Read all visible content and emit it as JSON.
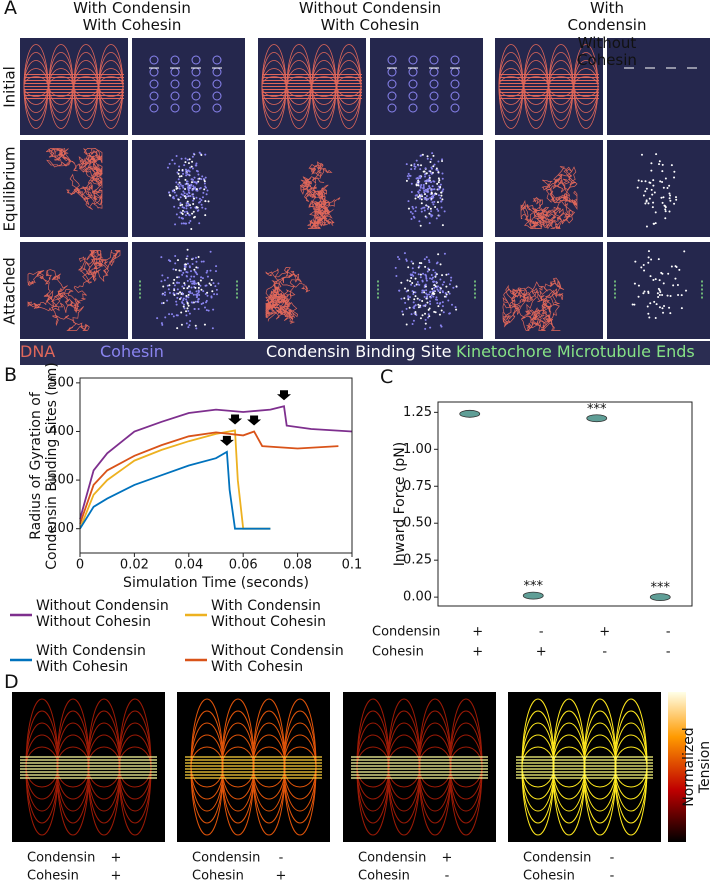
{
  "panel_labels": [
    "A",
    "B",
    "C",
    "D"
  ],
  "panel_a": {
    "columns": [
      "With Condensin\nWith Cohesin",
      "Without Condensin\nWith Cohesin",
      "With Condensin\nWithout Cohesin"
    ],
    "rows": [
      "Initial",
      "Equilibrium",
      "Attached"
    ],
    "legend": [
      {
        "label": "DNA",
        "color": "#e0675a"
      },
      {
        "label": "Cohesin",
        "color": "#8a84f0"
      },
      {
        "label": "Condensin Binding Site",
        "color": "#ffffff"
      },
      {
        "label": "Kinetochore Microtubule Ends",
        "color": "#86e386"
      }
    ]
  },
  "chart_data": [
    {
      "type": "line",
      "xlabel": "Simulation Time (seconds)",
      "ylabel": "Radius of Gyration of\nCondensin Binding Sites (nm)",
      "xlim": [
        0,
        0.1
      ],
      "ylim": [
        150,
        510
      ],
      "xticks": [
        0,
        0.02,
        0.04,
        0.06,
        0.08,
        0.1
      ],
      "yticks": [
        200,
        300,
        400,
        500
      ],
      "series": [
        {
          "name": "Without Condensin\nWithout Cohesin",
          "color": "#7e2f8e",
          "x": [
            0,
            0.005,
            0.01,
            0.02,
            0.03,
            0.04,
            0.05,
            0.06,
            0.07,
            0.075,
            0.076,
            0.085,
            0.1
          ],
          "values": [
            220,
            320,
            355,
            400,
            420,
            438,
            445,
            440,
            445,
            452,
            412,
            405,
            400
          ]
        },
        {
          "name": "With Condensin\nWithout Cohesin",
          "color": "#edb120",
          "x": [
            0,
            0.005,
            0.01,
            0.02,
            0.03,
            0.04,
            0.05,
            0.057,
            0.058,
            0.06,
            0.07
          ],
          "values": [
            200,
            270,
            300,
            340,
            362,
            380,
            395,
            402,
            300,
            200,
            200
          ]
        },
        {
          "name": "With Condensin\nWith Cohesin",
          "color": "#0072bd",
          "x": [
            0,
            0.005,
            0.01,
            0.02,
            0.03,
            0.04,
            0.05,
            0.054,
            0.055,
            0.057,
            0.07
          ],
          "values": [
            200,
            245,
            262,
            290,
            310,
            330,
            345,
            358,
            280,
            200,
            200
          ]
        },
        {
          "name": "Without Condensin\nWith Cohesin",
          "color": "#d95319",
          "x": [
            0,
            0.005,
            0.01,
            0.02,
            0.03,
            0.04,
            0.05,
            0.06,
            0.064,
            0.067,
            0.08,
            0.095
          ],
          "values": [
            210,
            290,
            320,
            350,
            372,
            390,
            398,
            392,
            400,
            370,
            365,
            370
          ]
        }
      ]
    },
    {
      "type": "violin",
      "ylabel": "Inward Force (pN)",
      "ylim": [
        -0.06,
        1.32
      ],
      "yticks": [
        {
          "value": 0,
          "label": "0.00"
        },
        {
          "value": 0.25,
          "label": "0.25"
        },
        {
          "value": 0.5,
          "label": "0.50"
        },
        {
          "value": 0.75,
          "label": "0.75"
        },
        {
          "value": 1,
          "label": "1.00"
        },
        {
          "value": 1.25,
          "label": "1.25"
        }
      ],
      "values": [
        1.24,
        0.01,
        1.21,
        0.0
      ],
      "annotations": [
        null,
        "***",
        "***",
        "***"
      ],
      "conditions": [
        {
          "label": "Condensin",
          "values": [
            "+",
            "-",
            "+",
            "-"
          ]
        },
        {
          "label": "Cohesin",
          "values": [
            "+",
            "+",
            "-",
            "-"
          ]
        }
      ],
      "color": "#5f9e96"
    }
  ],
  "panel_d": {
    "row_labels": [
      "Condensin",
      "Cohesin"
    ],
    "conditions": [
      [
        "+",
        "+"
      ],
      [
        "-",
        "+"
      ],
      [
        "+",
        "-"
      ],
      [
        "-",
        "-"
      ]
    ],
    "colorbar_label": "Normalized Tension"
  }
}
